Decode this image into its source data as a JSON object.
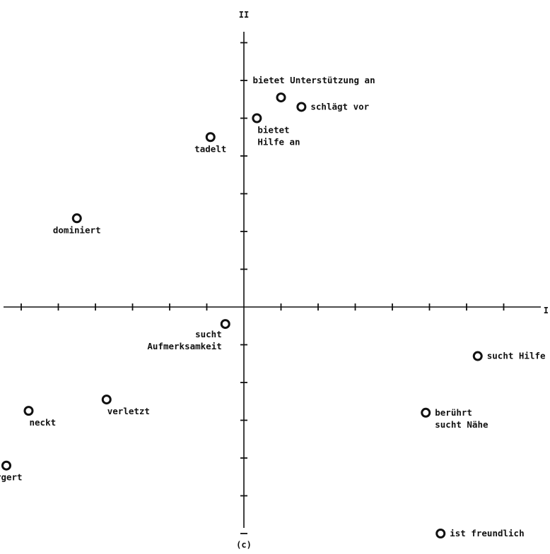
{
  "chart_data": {
    "type": "scatter",
    "x_axis_label": "I",
    "y_axis_label": "II",
    "caption": "(c)",
    "xlim": [
      -6.6,
      7.8
    ],
    "ylim": [
      -6.1,
      7.6
    ],
    "x_ticks": [
      -6,
      -5,
      -4,
      -3,
      -2,
      -1,
      1,
      2,
      3,
      4,
      5,
      6,
      7
    ],
    "y_ticks": [
      -6,
      -5,
      -4,
      -3,
      -2,
      -1,
      1,
      2,
      3,
      4,
      5,
      6,
      7
    ],
    "points": [
      {
        "x": 1.0,
        "y": 5.55,
        "label": [
          "bietet Unterstützung an"
        ],
        "label_pos": "above"
      },
      {
        "x": 1.55,
        "y": 5.3,
        "label": [
          "schlägt vor"
        ],
        "label_pos": "right"
      },
      {
        "x": 0.35,
        "y": 5.0,
        "label": [
          "bietet",
          "Hilfe an"
        ],
        "label_pos": "below-right"
      },
      {
        "x": -0.9,
        "y": 4.5,
        "label": [
          "tadelt"
        ],
        "label_pos": "below"
      },
      {
        "x": -4.5,
        "y": 2.35,
        "label": [
          "dominiert"
        ],
        "label_pos": "below"
      },
      {
        "x": -0.5,
        "y": -0.45,
        "label": [
          "sucht",
          "Aufmerksamkeit"
        ],
        "label_pos": "below-left"
      },
      {
        "x": 6.3,
        "y": -1.3,
        "label": [
          "sucht Hilfe"
        ],
        "label_pos": "right"
      },
      {
        "x": -3.7,
        "y": -2.45,
        "label": [
          "verletzt"
        ],
        "label_pos": "below-right"
      },
      {
        "x": -5.8,
        "y": -2.75,
        "label": [
          "neckt"
        ],
        "label_pos": "below-right"
      },
      {
        "x": 4.9,
        "y": -2.8,
        "label": [
          "berührt",
          "sucht Nähe"
        ],
        "label_pos": "right"
      },
      {
        "x": -6.4,
        "y": -4.2,
        "label": [
          "ärgert"
        ],
        "label_pos": "below"
      },
      {
        "x": 5.3,
        "y": -6.0,
        "label": [
          "ist freundlich"
        ],
        "label_pos": "right"
      }
    ]
  }
}
